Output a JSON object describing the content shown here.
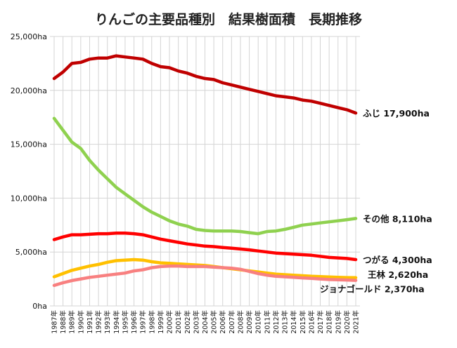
{
  "chart_data": {
    "type": "line",
    "title": "りんごの主要品種別　結果樹面積　長期推移",
    "xlabel": "",
    "ylabel": "",
    "ylim": [
      0,
      25000
    ],
    "grid": true,
    "legend": "none",
    "y_ticks": [
      "0ha",
      "5,000ha",
      "10,000ha",
      "15,000ha",
      "20,000ha",
      "25,000ha"
    ],
    "categories": [
      "1987年",
      "1988年",
      "1989年",
      "1990年",
      "1991年",
      "1992年",
      "1993年",
      "1994年",
      "1995年",
      "1996年",
      "1997年",
      "1998年",
      "1999年",
      "2000年",
      "2001年",
      "2002年",
      "2003年",
      "2004年",
      "2005年",
      "2006年",
      "2007年",
      "2008年",
      "2009年",
      "2010年",
      "2011年",
      "2012年",
      "2013年",
      "2014年",
      "2015年",
      "2016年",
      "2017年",
      "2018年",
      "2019年",
      "2020年",
      "2021年"
    ],
    "series": [
      {
        "name": "ふじ",
        "end_label": "ふじ 17,900ha",
        "color": "#c00000",
        "values": [
          21100,
          21700,
          22500,
          22600,
          22900,
          23000,
          23000,
          23200,
          23100,
          23000,
          22900,
          22500,
          22200,
          22100,
          21800,
          21600,
          21300,
          21100,
          21000,
          20700,
          20500,
          20300,
          20100,
          19900,
          19700,
          19500,
          19400,
          19300,
          19100,
          19000,
          18800,
          18600,
          18400,
          18200,
          17900
        ]
      },
      {
        "name": "その他",
        "end_label": "その他 8,110ha",
        "color": "#8fd14f",
        "values": [
          17400,
          16300,
          15200,
          14600,
          13500,
          12600,
          11800,
          11000,
          10400,
          9800,
          9200,
          8700,
          8300,
          7900,
          7600,
          7400,
          7100,
          7000,
          6950,
          6950,
          6950,
          6900,
          6800,
          6700,
          6900,
          6950,
          7100,
          7300,
          7500,
          7600,
          7700,
          7800,
          7900,
          8000,
          8110
        ]
      },
      {
        "name": "つがる",
        "end_label": "つがる 4,300ha",
        "color": "#ff0000",
        "values": [
          6150,
          6400,
          6600,
          6600,
          6650,
          6700,
          6700,
          6750,
          6750,
          6700,
          6600,
          6400,
          6200,
          6050,
          5900,
          5750,
          5650,
          5550,
          5500,
          5420,
          5350,
          5280,
          5200,
          5100,
          5000,
          4900,
          4850,
          4800,
          4750,
          4700,
          4600,
          4500,
          4450,
          4400,
          4300
        ]
      },
      {
        "name": "王林",
        "end_label": "王林 2,620ha",
        "color": "#ffc000",
        "values": [
          2700,
          3000,
          3300,
          3500,
          3700,
          3850,
          4050,
          4200,
          4250,
          4300,
          4250,
          4100,
          4000,
          3950,
          3900,
          3850,
          3800,
          3750,
          3650,
          3550,
          3450,
          3350,
          3250,
          3150,
          3050,
          2950,
          2900,
          2850,
          2800,
          2750,
          2720,
          2680,
          2650,
          2630,
          2620
        ]
      },
      {
        "name": "ジョナゴールド",
        "end_label": "ジョナゴールド 2,370ha",
        "color": "#f88080",
        "values": [
          1900,
          2150,
          2350,
          2500,
          2650,
          2750,
          2850,
          2950,
          3050,
          3250,
          3350,
          3550,
          3650,
          3700,
          3700,
          3650,
          3650,
          3650,
          3600,
          3550,
          3500,
          3400,
          3200,
          3000,
          2850,
          2750,
          2700,
          2650,
          2600,
          2550,
          2500,
          2450,
          2420,
          2400,
          2370
        ]
      }
    ]
  }
}
